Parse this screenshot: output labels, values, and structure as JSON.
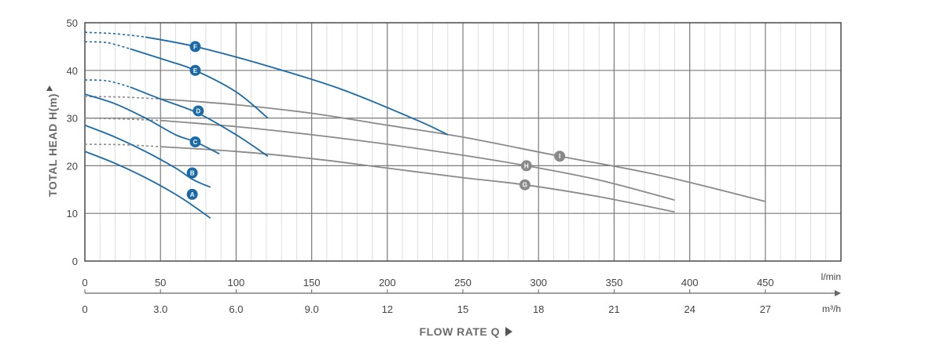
{
  "chart_data": {
    "type": "line",
    "title": "",
    "xlabel": "FLOW RATE Q",
    "ylabel": "TOTAL HEAD H(m)",
    "x_unit": "l/min",
    "x2_unit": "m³/h",
    "xlim": [
      0,
      500
    ],
    "ylim": [
      0,
      50
    ],
    "x_ticks": [
      0,
      50,
      100,
      150,
      200,
      250,
      300,
      350,
      400,
      450
    ],
    "x_tick_labels": [
      "0",
      "50",
      "100",
      "150",
      "200",
      "250",
      "300",
      "350",
      "400",
      "450"
    ],
    "x2_ticks": [
      0,
      50,
      100,
      150,
      200,
      250,
      300,
      350,
      400,
      450
    ],
    "x2_tick_labels": [
      "0",
      "3.0",
      "6.0",
      "9.0",
      "12",
      "15",
      "18",
      "21",
      "24",
      "27"
    ],
    "y_ticks": [
      0,
      10,
      20,
      30,
      40,
      50
    ],
    "y_tick_labels": [
      "0",
      "10",
      "20",
      "30",
      "40",
      "50"
    ],
    "grid": true,
    "colors": {
      "blue": "#1a6aa8",
      "gray": "#8a8a8a",
      "grid": "#7a7a7a",
      "minor_grid": "#d6d6d6"
    },
    "series": [
      {
        "name": "A",
        "color": "blue",
        "dashed": [],
        "points": [
          [
            0,
            23
          ],
          [
            20,
            20.5
          ],
          [
            40,
            17.5
          ],
          [
            60,
            14
          ],
          [
            72,
            11.5
          ],
          [
            83,
            9
          ]
        ],
        "label_at": [
          71,
          14
        ]
      },
      {
        "name": "B",
        "color": "blue",
        "dashed": [],
        "points": [
          [
            0,
            28.5
          ],
          [
            20,
            26
          ],
          [
            40,
            23
          ],
          [
            60,
            19.5
          ],
          [
            72,
            17
          ],
          [
            83,
            15.5
          ]
        ],
        "label_at": [
          71,
          18.5
        ]
      },
      {
        "name": "C",
        "color": "blue",
        "dashed": [],
        "points": [
          [
            0,
            35
          ],
          [
            20,
            33
          ],
          [
            40,
            30
          ],
          [
            60,
            26.5
          ],
          [
            73,
            25
          ],
          [
            89,
            22.5
          ]
        ],
        "label_at": [
          73,
          25
        ]
      },
      {
        "name": "D",
        "color": "blue",
        "dashed": [
          [
            0,
            38
          ],
          [
            15,
            37.8
          ],
          [
            30,
            36.5
          ]
        ],
        "points": [
          [
            30,
            36.5
          ],
          [
            50,
            34
          ],
          [
            75,
            31
          ],
          [
            100,
            26.5
          ],
          [
            121,
            22
          ]
        ],
        "label_at": [
          75,
          31.5
        ]
      },
      {
        "name": "E",
        "color": "blue",
        "dashed": [
          [
            0,
            46
          ],
          [
            15,
            45.8
          ],
          [
            30,
            44.5
          ]
        ],
        "points": [
          [
            30,
            44.5
          ],
          [
            55,
            42
          ],
          [
            73,
            40
          ],
          [
            100,
            35.5
          ],
          [
            121,
            30
          ]
        ],
        "label_at": [
          73,
          40
        ]
      },
      {
        "name": "F",
        "color": "blue",
        "dashed": [
          [
            0,
            48
          ],
          [
            20,
            47.7
          ],
          [
            40,
            47
          ]
        ],
        "points": [
          [
            40,
            47
          ],
          [
            73,
            45
          ],
          [
            120,
            41
          ],
          [
            170,
            36
          ],
          [
            220,
            29.5
          ],
          [
            240,
            26.5
          ]
        ],
        "label_at": [
          73,
          45
        ]
      },
      {
        "name": "G",
        "color": "gray",
        "dashed": [
          [
            0,
            24.5
          ],
          [
            25,
            24.4
          ],
          [
            50,
            24
          ]
        ],
        "points": [
          [
            50,
            24
          ],
          [
            100,
            23
          ],
          [
            150,
            21.5
          ],
          [
            200,
            19.5
          ],
          [
            250,
            17.5
          ],
          [
            291,
            16
          ],
          [
            340,
            13.5
          ],
          [
            390,
            10.3
          ]
        ],
        "label_at": [
          291,
          16
        ]
      },
      {
        "name": "H",
        "color": "gray",
        "dashed": [
          [
            0,
            30
          ],
          [
            25,
            29.8
          ],
          [
            50,
            29.5
          ]
        ],
        "points": [
          [
            50,
            29.5
          ],
          [
            100,
            28.2
          ],
          [
            150,
            26.5
          ],
          [
            200,
            24.5
          ],
          [
            250,
            22.2
          ],
          [
            292,
            20
          ],
          [
            340,
            17
          ],
          [
            390,
            12.8
          ]
        ],
        "label_at": [
          292,
          20
        ]
      },
      {
        "name": "I",
        "color": "gray",
        "dashed": [
          [
            0,
            34.5
          ],
          [
            25,
            34.4
          ],
          [
            50,
            34
          ]
        ],
        "points": [
          [
            50,
            34
          ],
          [
            100,
            32.8
          ],
          [
            150,
            31
          ],
          [
            200,
            28.5
          ],
          [
            250,
            26
          ],
          [
            314,
            22
          ],
          [
            380,
            18
          ],
          [
            450,
            12.5
          ]
        ],
        "label_at": [
          314,
          22
        ]
      }
    ]
  }
}
